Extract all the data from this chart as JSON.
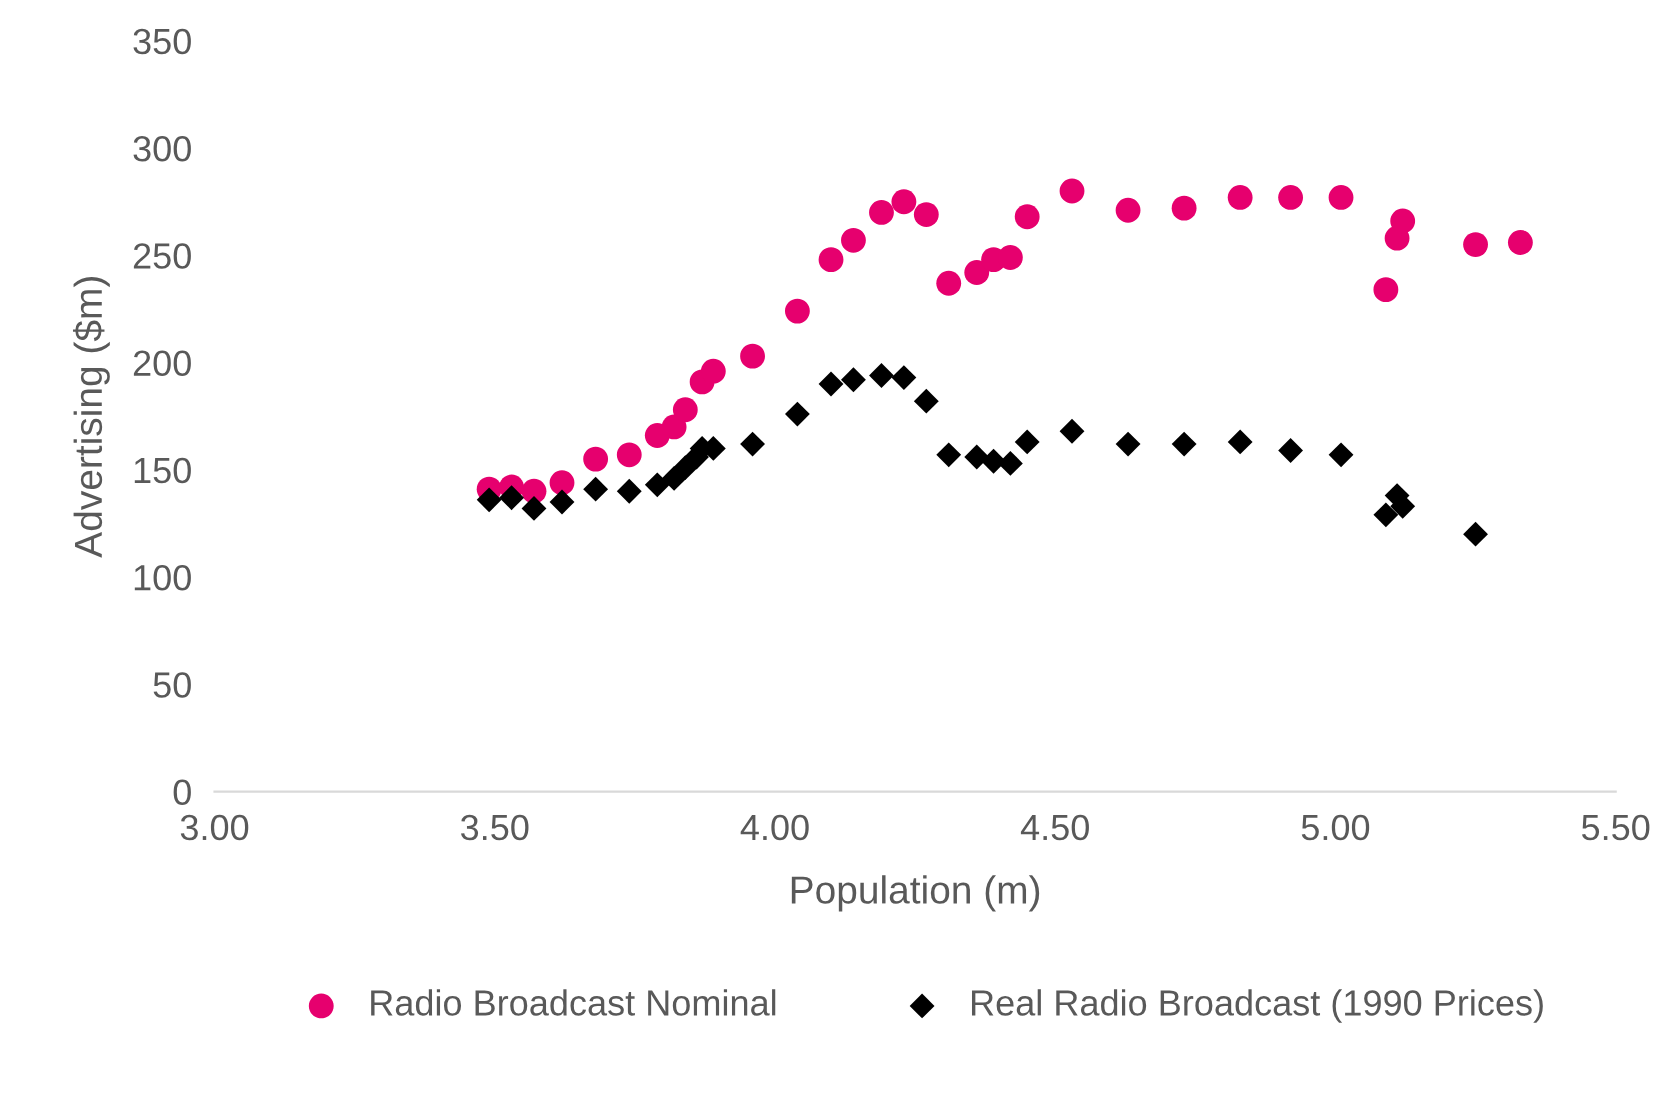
{
  "chart_data": {
    "type": "scatter",
    "xlabel": "Population (m)",
    "ylabel": "Advertising ($m)",
    "xlim": [
      3.0,
      5.5
    ],
    "xticks": [
      {
        "value": 3.0,
        "label": "3.00"
      },
      {
        "value": 3.5,
        "label": "3.50"
      },
      {
        "value": 4.0,
        "label": "4.00"
      },
      {
        "value": 4.5,
        "label": "4.50"
      },
      {
        "value": 5.0,
        "label": "5.00"
      },
      {
        "value": 5.5,
        "label": "5.50"
      }
    ],
    "ylim": [
      0,
      350
    ],
    "yticks": [
      0,
      50,
      100,
      150,
      200,
      250,
      300,
      350
    ],
    "grid": false,
    "legend": "bottom",
    "series": [
      {
        "name": "Radio Broadcast Nominal",
        "color": "#e6006e",
        "marker": "circle",
        "x": [
          3.49,
          3.53,
          3.57,
          3.62,
          3.68,
          3.74,
          3.79,
          3.82,
          3.84,
          3.87,
          3.89,
          3.96,
          4.04,
          4.1,
          4.14,
          4.19,
          4.23,
          4.27,
          4.31,
          4.36,
          4.39,
          4.42,
          4.45,
          4.53,
          4.63,
          4.73,
          4.83,
          4.92,
          5.01,
          5.09,
          5.11,
          5.12,
          5.25,
          5.33
        ],
        "values": [
          141,
          142,
          140,
          144,
          155,
          157,
          166,
          170,
          178,
          191,
          196,
          203,
          224,
          248,
          257,
          270,
          275,
          269,
          237,
          242,
          248,
          249,
          268,
          280,
          271,
          272,
          277,
          277,
          277,
          234,
          258,
          266,
          255,
          256
        ]
      },
      {
        "name": "Real Radio Broadcast (1990 Prices)",
        "color": "#000000",
        "marker": "diamond",
        "x": [
          3.49,
          3.53,
          3.57,
          3.62,
          3.68,
          3.74,
          3.79,
          3.82,
          3.84,
          3.86,
          3.87,
          3.89,
          3.96,
          4.04,
          4.1,
          4.14,
          4.19,
          4.23,
          4.27,
          4.31,
          4.36,
          4.39,
          4.42,
          4.45,
          4.53,
          4.63,
          4.73,
          4.83,
          4.92,
          5.01,
          5.09,
          5.11,
          5.12,
          5.25
        ],
        "values": [
          136,
          137,
          132,
          135,
          141,
          140,
          143,
          146,
          151,
          156,
          160,
          160,
          162,
          176,
          190,
          192,
          194,
          193,
          182,
          157,
          156,
          154,
          153,
          163,
          168,
          162,
          162,
          163,
          159,
          157,
          129,
          138,
          133,
          120
        ]
      }
    ]
  }
}
